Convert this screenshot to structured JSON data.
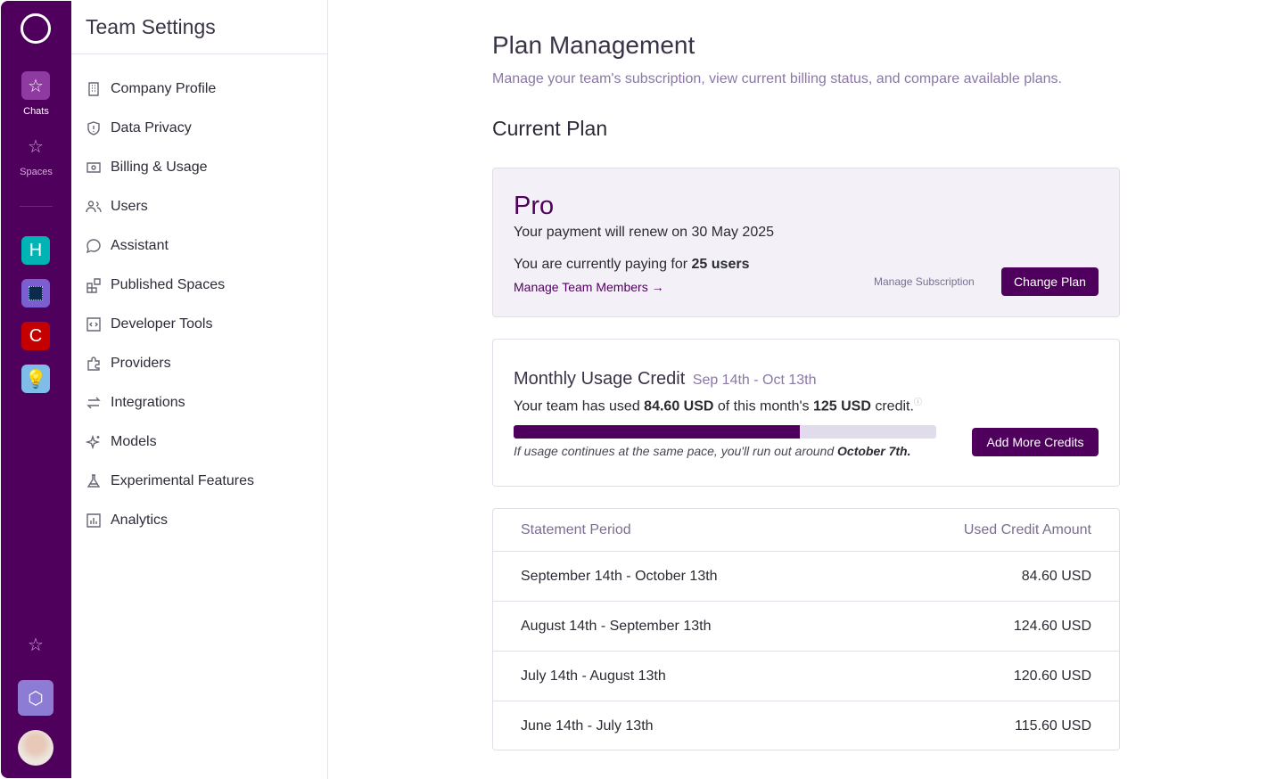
{
  "rail": {
    "chats": "Chats",
    "spaces": "Spaces",
    "workspaces": [
      {
        "letter": "H",
        "color": "#00b4b4"
      },
      {
        "letter": "",
        "color": "#7b5fd0"
      },
      {
        "letter": "C",
        "color": "#c40000"
      },
      {
        "letter": "",
        "color": "#7fbde8"
      }
    ]
  },
  "sidebar": {
    "title": "Team Settings",
    "items": [
      {
        "label": "Company Profile",
        "icon": "building-icon"
      },
      {
        "label": "Data Privacy",
        "icon": "shield-icon"
      },
      {
        "label": "Billing & Usage",
        "icon": "money-icon"
      },
      {
        "label": "Users",
        "icon": "users-icon"
      },
      {
        "label": "Assistant",
        "icon": "chat-bubble-icon"
      },
      {
        "label": "Published Spaces",
        "icon": "grid-icon"
      },
      {
        "label": "Developer Tools",
        "icon": "code-icon"
      },
      {
        "label": "Providers",
        "icon": "puzzle-icon"
      },
      {
        "label": "Integrations",
        "icon": "arrows-icon"
      },
      {
        "label": "Models",
        "icon": "sparkle-icon"
      },
      {
        "label": "Experimental Features",
        "icon": "flask-icon"
      },
      {
        "label": "Analytics",
        "icon": "chart-icon"
      }
    ]
  },
  "main": {
    "title": "Plan Management",
    "subtitle": "Manage your team's subscription, view current billing status, and compare available plans.",
    "current_plan_heading": "Current Plan",
    "plan": {
      "name": "Pro",
      "renew_prefix": "Your payment will renew on ",
      "renew_date": "30 May 2025",
      "paying_prefix": "You are currently paying for ",
      "users": "25 users",
      "manage_members": "Manage Team Members",
      "manage_subscription": "Manage Subscription",
      "change_plan": "Change Plan"
    },
    "usage": {
      "title": "Monthly Usage Credit",
      "period": "Sep 14th - Oct 13th",
      "used_prefix": "Your team has used ",
      "used": "84.60 USD",
      "mid": " of this month's ",
      "total": "125 USD",
      "suffix": " credit.",
      "used_value": 84.6,
      "total_value": 125,
      "forecast_prefix": "If usage continues at the same pace, you'll run out around ",
      "forecast_date": "October 7th.",
      "add_credits": "Add More Credits"
    },
    "table": {
      "headers": [
        "Statement Period",
        "Used Credit Amount"
      ],
      "rows": [
        [
          "September 14th - October 13th",
          "84.60 USD"
        ],
        [
          "August 14th - September 13th",
          "124.60 USD"
        ],
        [
          "July 14th - August 13th",
          "120.60 USD"
        ],
        [
          "June 14th - July 13th",
          "115.60 USD"
        ]
      ]
    }
  },
  "colors": {
    "brand": "#4f005c",
    "accent_text": "#8a78a6"
  }
}
